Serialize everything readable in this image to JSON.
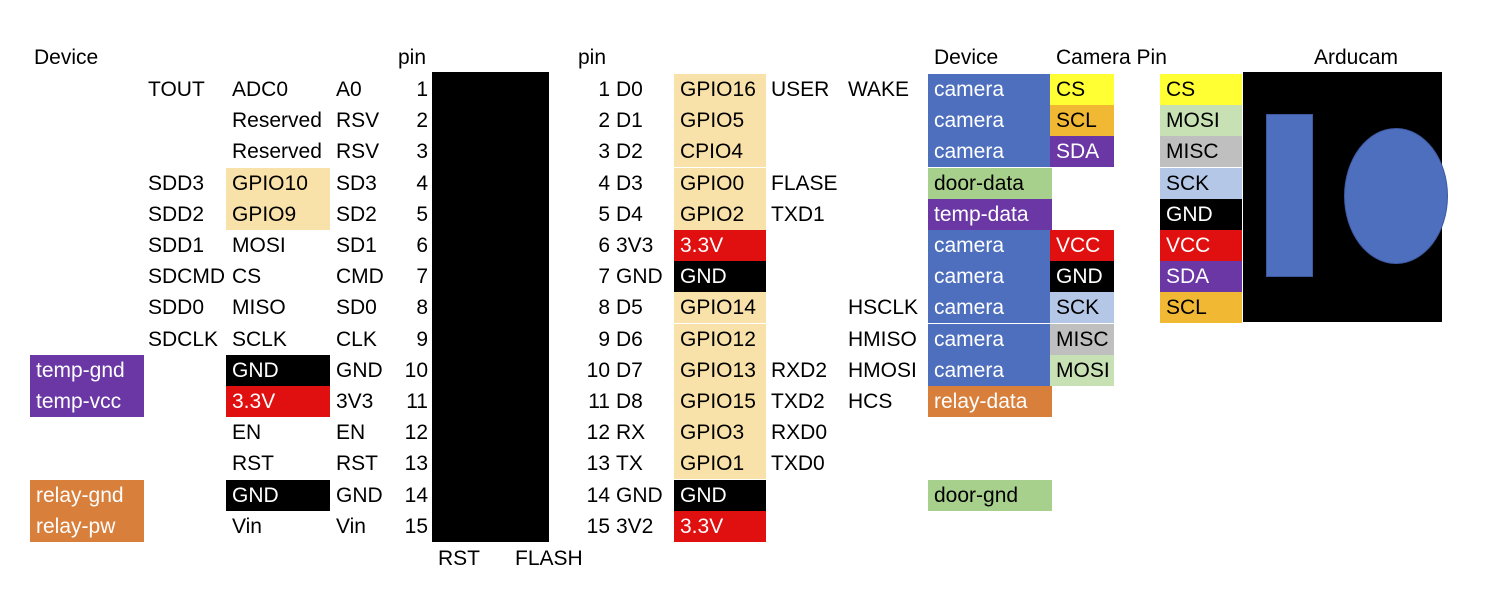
{
  "headers": {
    "device_left": "Device",
    "pin_left": "pin",
    "pin_right": "pin",
    "device_right": "Device",
    "camera_pin": "Camera Pin",
    "arducam": "Arducam"
  },
  "colors": {
    "gpio": "#f9e2a9",
    "black": "#000000",
    "red": "#e01010",
    "blue": "#4e6fbe",
    "purple": "#6a37a5",
    "orange": "#d77f3b",
    "green": "#a8d08d",
    "yellow": "#ffff33",
    "gold": "#f1b833",
    "lightgreen": "#c7e1b5",
    "lightgray": "#bfbfbf",
    "lightblue": "#b4c7e7"
  },
  "left_rows": [
    {
      "alt": "TOUT",
      "func": "ADC0",
      "func_color": "",
      "name": "A0",
      "pin": "1",
      "device": ""
    },
    {
      "alt": "",
      "func": "Reserved",
      "func_color": "",
      "name": "RSV",
      "pin": "2",
      "device": ""
    },
    {
      "alt": "",
      "func": "Reserved",
      "func_color": "",
      "name": "RSV",
      "pin": "3",
      "device": ""
    },
    {
      "alt": "SDD3",
      "func": "GPIO10",
      "func_color": "gpio",
      "name": "SD3",
      "pin": "4",
      "device": ""
    },
    {
      "alt": "SDD2",
      "func": "GPIO9",
      "func_color": "gpio",
      "name": "SD2",
      "pin": "5",
      "device": ""
    },
    {
      "alt": "SDD1",
      "func": "MOSI",
      "func_color": "",
      "name": "SD1",
      "pin": "6",
      "device": ""
    },
    {
      "alt": "SDCMD",
      "func": "CS",
      "func_color": "",
      "name": "CMD",
      "pin": "7",
      "device": ""
    },
    {
      "alt": "SDD0",
      "func": "MISO",
      "func_color": "",
      "name": "SD0",
      "pin": "8",
      "device": ""
    },
    {
      "alt": "SDCLK",
      "func": "SCLK",
      "func_color": "",
      "name": "CLK",
      "pin": "9",
      "device": ""
    },
    {
      "alt": "",
      "func": "GND",
      "func_color": "black",
      "name": "GND",
      "pin": "10",
      "device": "temp-gnd",
      "device_color": "purple"
    },
    {
      "alt": "",
      "func": "3.3V",
      "func_color": "red",
      "name": "3V3",
      "pin": "11",
      "device": "temp-vcc",
      "device_color": "purple"
    },
    {
      "alt": "",
      "func": "EN",
      "func_color": "",
      "name": "EN",
      "pin": "12",
      "device": ""
    },
    {
      "alt": "",
      "func": "RST",
      "func_color": "",
      "name": "RST",
      "pin": "13",
      "device": ""
    },
    {
      "alt": "",
      "func": "GND",
      "func_color": "black",
      "name": "GND",
      "pin": "14",
      "device": "relay-gnd",
      "device_color": "orange"
    },
    {
      "alt": "",
      "func": "Vin",
      "func_color": "",
      "name": "Vin",
      "pin": "15",
      "device": "relay-pw",
      "device_color": "orange"
    }
  ],
  "right_rows": [
    {
      "pin": "1",
      "name": "D0",
      "func": "GPIO16",
      "func_color": "gpio",
      "extra": "USER",
      "hspi": "WAKE",
      "device": "camera",
      "device_color": "blue",
      "campin": "CS",
      "campin_color": "yellow"
    },
    {
      "pin": "2",
      "name": "D1",
      "func": "GPIO5",
      "func_color": "gpio",
      "extra": "",
      "hspi": "",
      "device": "camera",
      "device_color": "blue",
      "campin": "SCL",
      "campin_color": "gold"
    },
    {
      "pin": "3",
      "name": "D2",
      "func": "CPIO4",
      "func_color": "gpio",
      "extra": "",
      "hspi": "",
      "device": "camera",
      "device_color": "blue",
      "campin": "SDA",
      "campin_color": "purple"
    },
    {
      "pin": "4",
      "name": "D3",
      "func": "GPIO0",
      "func_color": "gpio",
      "extra": "FLASE",
      "hspi": "",
      "device": "door-data",
      "device_color": "green",
      "campin": "",
      "campin_color": ""
    },
    {
      "pin": "5",
      "name": "D4",
      "func": "GPIO2",
      "func_color": "gpio",
      "extra": "TXD1",
      "hspi": "",
      "device": "temp-data",
      "device_color": "purple",
      "campin": "",
      "campin_color": ""
    },
    {
      "pin": "6",
      "name": "3V3",
      "func": "3.3V",
      "func_color": "red",
      "extra": "",
      "hspi": "",
      "device": "camera",
      "device_color": "blue",
      "campin": "VCC",
      "campin_color": "red"
    },
    {
      "pin": "7",
      "name": "GND",
      "func": "GND",
      "func_color": "black",
      "extra": "",
      "hspi": "",
      "device": "camera",
      "device_color": "blue",
      "campin": "GND",
      "campin_color": "black"
    },
    {
      "pin": "8",
      "name": "D5",
      "func": "GPIO14",
      "func_color": "gpio",
      "extra": "",
      "hspi": "HSCLK",
      "device": "camera",
      "device_color": "blue",
      "campin": "SCK",
      "campin_color": "lightblue"
    },
    {
      "pin": "9",
      "name": "D6",
      "func": "GPIO12",
      "func_color": "gpio",
      "extra": "",
      "hspi": "HMISO",
      "device": "camera",
      "device_color": "blue",
      "campin": "MISC",
      "campin_color": "lightgray"
    },
    {
      "pin": "10",
      "name": "D7",
      "func": "GPIO13",
      "func_color": "gpio",
      "extra": "RXD2",
      "hspi": "HMOSI",
      "device": "camera",
      "device_color": "blue",
      "campin": "MOSI",
      "campin_color": "lightgreen"
    },
    {
      "pin": "11",
      "name": "D8",
      "func": "GPIO15",
      "func_color": "gpio",
      "extra": "TXD2",
      "hspi": "HCS",
      "device": "relay-data",
      "device_color": "orange",
      "campin": "",
      "campin_color": ""
    },
    {
      "pin": "12",
      "name": "RX",
      "func": "GPIO3",
      "func_color": "gpio",
      "extra": "RXD0",
      "hspi": "",
      "device": "",
      "device_color": "",
      "campin": "",
      "campin_color": ""
    },
    {
      "pin": "13",
      "name": "TX",
      "func": "GPIO1",
      "func_color": "gpio",
      "extra": "TXD0",
      "hspi": "",
      "device": "",
      "device_color": "",
      "campin": "",
      "campin_color": ""
    },
    {
      "pin": "14",
      "name": "GND",
      "func": "GND",
      "func_color": "black",
      "extra": "",
      "hspi": "",
      "device": "door-gnd",
      "device_color": "green",
      "campin": "",
      "campin_color": ""
    },
    {
      "pin": "15",
      "name": "3V2",
      "func": "3.3V",
      "func_color": "red",
      "extra": "",
      "hspi": "",
      "device": "",
      "device_color": "",
      "campin": "",
      "campin_color": ""
    }
  ],
  "arducam_pins": [
    {
      "label": "CS",
      "color": "yellow"
    },
    {
      "label": "MOSI",
      "color": "lightgreen"
    },
    {
      "label": "MISC",
      "color": "lightgray"
    },
    {
      "label": "SCK",
      "color": "lightblue"
    },
    {
      "label": "GND",
      "color": "black"
    },
    {
      "label": "VCC",
      "color": "red"
    },
    {
      "label": "SDA",
      "color": "purple"
    },
    {
      "label": "SCL",
      "color": "gold"
    }
  ],
  "board_buttons": {
    "rst": "RST",
    "flash": "FLASH"
  }
}
